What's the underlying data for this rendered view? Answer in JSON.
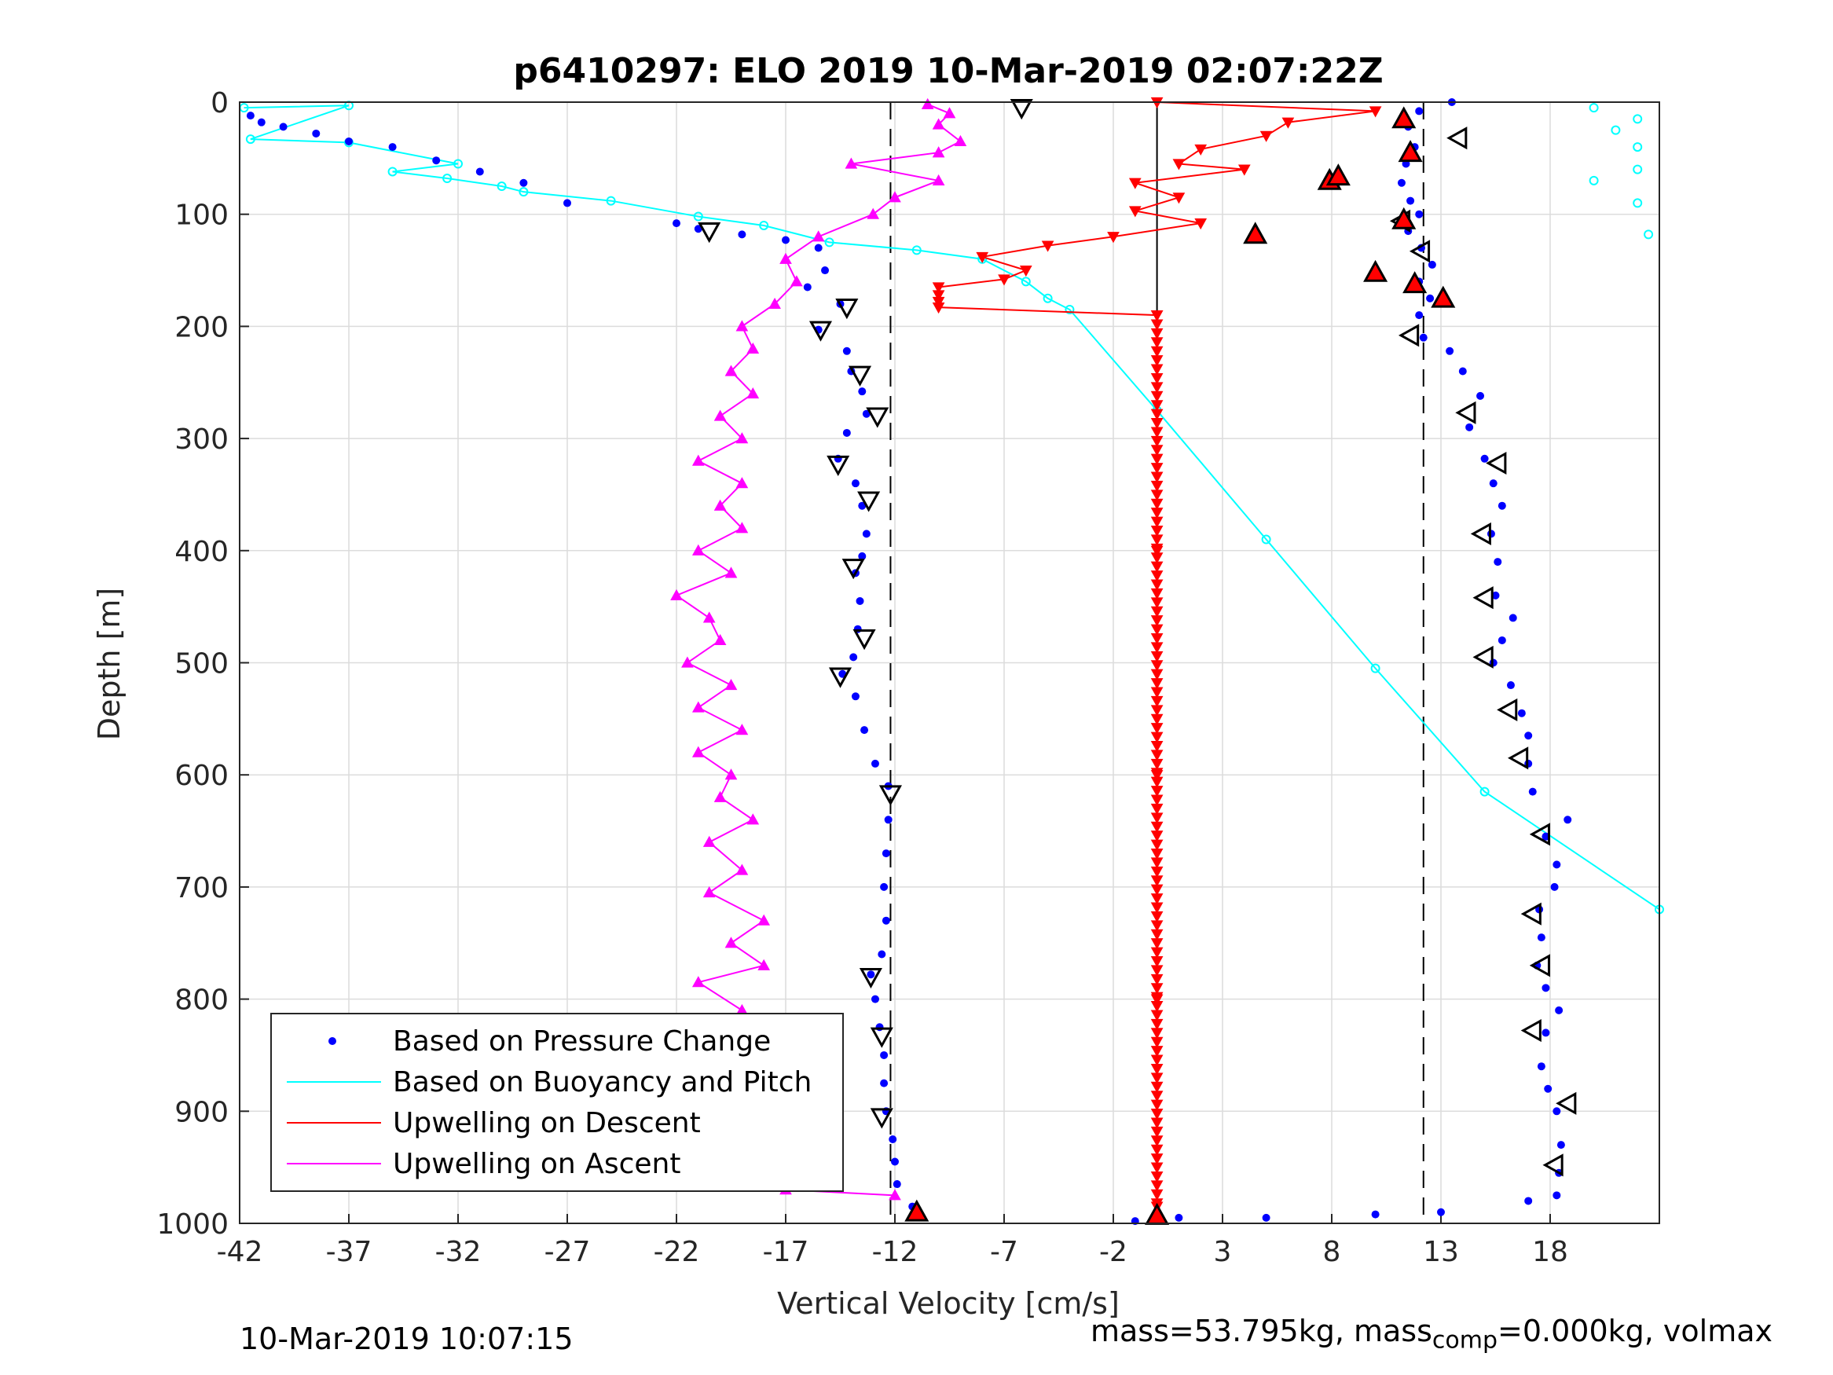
{
  "chart_data": {
    "type": "scatter",
    "title": "p6410297: ELO 2019 10-Mar-2019 02:07:22Z",
    "xlabel": "Vertical Velocity [cm/s]",
    "ylabel": "Depth [m]",
    "xlim": [
      -42,
      23
    ],
    "ylim": [
      0,
      1000
    ],
    "y_reversed": true,
    "grid": true,
    "xticks": [
      -42,
      -37,
      -32,
      -27,
      -22,
      -17,
      -12,
      -7,
      -2,
      3,
      8,
      13,
      18
    ],
    "yticks": [
      0,
      100,
      200,
      300,
      400,
      500,
      600,
      700,
      800,
      900,
      1000
    ],
    "reference_lines": {
      "solid_x": [
        0
      ],
      "dashed_x": [
        -12.2,
        12.2
      ]
    },
    "legend_position": "bottom-left",
    "series": [
      {
        "name": "Based on Pressure Change",
        "color": "#0000ff",
        "marker": "dot",
        "descent": [
          [
            -41.5,
            12
          ],
          [
            -41,
            18
          ],
          [
            -40,
            22
          ],
          [
            -38.5,
            28
          ],
          [
            -37,
            35
          ],
          [
            -35,
            40
          ],
          [
            -33,
            52
          ],
          [
            -31,
            62
          ],
          [
            -29,
            72
          ],
          [
            -27,
            90
          ],
          [
            -22,
            108
          ],
          [
            -21,
            113
          ],
          [
            -19,
            118
          ],
          [
            -17,
            123
          ],
          [
            -15.5,
            130
          ],
          [
            -15.2,
            150
          ],
          [
            -16,
            165
          ],
          [
            -14.5,
            180
          ],
          [
            -15.5,
            203
          ],
          [
            -14.2,
            222
          ],
          [
            -14,
            240
          ],
          [
            -13.5,
            258
          ],
          [
            -13.3,
            278
          ],
          [
            -14.2,
            295
          ],
          [
            -14.6,
            318
          ],
          [
            -13.8,
            340
          ],
          [
            -13.5,
            360
          ],
          [
            -13.3,
            385
          ],
          [
            -13.5,
            405
          ],
          [
            -13.8,
            420
          ],
          [
            -13.6,
            445
          ],
          [
            -13.7,
            470
          ],
          [
            -13.9,
            495
          ],
          [
            -14.4,
            510
          ],
          [
            -13.8,
            530
          ],
          [
            -13.4,
            560
          ],
          [
            -12.9,
            590
          ],
          [
            -12.3,
            610
          ],
          [
            -12.3,
            640
          ],
          [
            -12.4,
            670
          ],
          [
            -12.5,
            700
          ],
          [
            -12.4,
            730
          ],
          [
            -12.6,
            760
          ],
          [
            -13.1,
            778
          ],
          [
            -12.9,
            800
          ],
          [
            -12.7,
            825
          ],
          [
            -12.5,
            850
          ],
          [
            -12.5,
            875
          ],
          [
            -12.4,
            900
          ],
          [
            -12.1,
            925
          ],
          [
            -12.0,
            945
          ],
          [
            -11.9,
            965
          ],
          [
            -11.2,
            985
          ]
        ],
        "ascent": [
          [
            -1,
            998
          ],
          [
            1,
            995
          ],
          [
            5,
            995
          ],
          [
            10,
            992
          ],
          [
            13,
            990
          ],
          [
            17,
            980
          ],
          [
            18.3,
            975
          ],
          [
            18.4,
            955
          ],
          [
            18.5,
            930
          ],
          [
            18.3,
            900
          ],
          [
            17.9,
            880
          ],
          [
            17.6,
            860
          ],
          [
            17.8,
            830
          ],
          [
            18.4,
            810
          ],
          [
            17.8,
            790
          ],
          [
            17.4,
            770
          ],
          [
            17.6,
            745
          ],
          [
            17.5,
            720
          ],
          [
            18.2,
            700
          ],
          [
            18.3,
            680
          ],
          [
            17.8,
            655
          ],
          [
            18.8,
            640
          ],
          [
            17.2,
            615
          ],
          [
            17.0,
            590
          ],
          [
            17.0,
            565
          ],
          [
            16.7,
            545
          ],
          [
            16.2,
            520
          ],
          [
            15.4,
            500
          ],
          [
            15.8,
            480
          ],
          [
            16.3,
            460
          ],
          [
            15.5,
            440
          ],
          [
            15.6,
            410
          ],
          [
            15.3,
            385
          ],
          [
            15.8,
            360
          ],
          [
            15.4,
            340
          ],
          [
            15.0,
            318
          ],
          [
            14.3,
            290
          ],
          [
            14.8,
            262
          ],
          [
            14.0,
            240
          ],
          [
            13.4,
            222
          ],
          [
            12.2,
            210
          ],
          [
            12.0,
            190
          ],
          [
            12.5,
            175
          ],
          [
            12.0,
            160
          ],
          [
            12.6,
            145
          ],
          [
            12.1,
            130
          ],
          [
            11.5,
            115
          ],
          [
            12.0,
            100
          ],
          [
            11.6,
            88
          ],
          [
            11.2,
            72
          ],
          [
            11.4,
            55
          ],
          [
            11.8,
            40
          ],
          [
            11.5,
            22
          ],
          [
            12.0,
            8
          ],
          [
            13.5,
            0
          ]
        ]
      },
      {
        "name": "Based on Buoyancy and Pitch",
        "color": "#00ffff",
        "marker": "circle-line",
        "points": [
          [
            -41.8,
            5
          ],
          [
            -37,
            3
          ],
          [
            -41.5,
            33
          ],
          [
            -37,
            36
          ],
          [
            -32,
            55
          ],
          [
            -35,
            62
          ],
          [
            -32.5,
            68
          ],
          [
            -30,
            75
          ],
          [
            -29,
            80
          ],
          [
            -25,
            88
          ],
          [
            -21,
            102
          ],
          [
            -18,
            110
          ],
          [
            -15,
            125
          ],
          [
            -11,
            132
          ],
          [
            -8,
            140
          ],
          [
            -6,
            160
          ],
          [
            -5,
            175
          ],
          [
            -4,
            185
          ],
          [
            0,
            275
          ],
          [
            5,
            390
          ],
          [
            10,
            505
          ],
          [
            15,
            615
          ],
          [
            23,
            720
          ],
          [
            20,
            5
          ],
          [
            22,
            15
          ],
          [
            21,
            25
          ],
          [
            22,
            40
          ],
          [
            22,
            60
          ],
          [
            20,
            70
          ],
          [
            22,
            90
          ],
          [
            22.5,
            118
          ]
        ]
      },
      {
        "name": "Upwelling on Descent",
        "color": "#ff0000",
        "marker": "triangle-down",
        "points": [
          [
            0,
            0
          ],
          [
            10,
            8
          ],
          [
            6,
            18
          ],
          [
            5,
            30
          ],
          [
            2,
            42
          ],
          [
            1,
            55
          ],
          [
            4,
            60
          ],
          [
            -1,
            72
          ],
          [
            1,
            85
          ],
          [
            -1,
            97
          ],
          [
            2,
            108
          ],
          [
            -2,
            120
          ],
          [
            -5,
            128
          ],
          [
            -8,
            138
          ],
          [
            -6,
            150
          ],
          [
            -7,
            158
          ],
          [
            -10,
            165
          ],
          [
            -10,
            172
          ],
          [
            -10,
            178
          ],
          [
            -10,
            183
          ],
          [
            0,
            190
          ],
          [
            0,
            400
          ],
          [
            0,
            600
          ],
          [
            0,
            800
          ],
          [
            0,
            985
          ]
        ]
      },
      {
        "name": "Upwelling on Ascent",
        "color": "#ff00ff",
        "marker": "triangle-up",
        "points": [
          [
            -12,
            975
          ],
          [
            -17,
            970
          ],
          [
            -18.5,
            955
          ],
          [
            -20.5,
            945
          ],
          [
            -17,
            935
          ],
          [
            -19,
            915
          ],
          [
            -17.5,
            895
          ],
          [
            -20,
            875
          ],
          [
            -19,
            855
          ],
          [
            -20.5,
            835
          ],
          [
            -19,
            810
          ],
          [
            -21,
            785
          ],
          [
            -18,
            770
          ],
          [
            -19.5,
            750
          ],
          [
            -18,
            730
          ],
          [
            -20.5,
            705
          ],
          [
            -19,
            685
          ],
          [
            -20.5,
            660
          ],
          [
            -18.5,
            640
          ],
          [
            -20,
            620
          ],
          [
            -19.5,
            600
          ],
          [
            -21,
            580
          ],
          [
            -19,
            560
          ],
          [
            -21,
            540
          ],
          [
            -19.5,
            520
          ],
          [
            -21.5,
            500
          ],
          [
            -20,
            480
          ],
          [
            -20.5,
            460
          ],
          [
            -22,
            440
          ],
          [
            -19.5,
            420
          ],
          [
            -21,
            400
          ],
          [
            -19,
            380
          ],
          [
            -20,
            360
          ],
          [
            -19,
            340
          ],
          [
            -21,
            320
          ],
          [
            -19,
            300
          ],
          [
            -20,
            280
          ],
          [
            -18.5,
            260
          ],
          [
            -19.5,
            240
          ],
          [
            -18.5,
            220
          ],
          [
            -19,
            200
          ],
          [
            -17.5,
            180
          ],
          [
            -16.5,
            160
          ],
          [
            -17,
            140
          ],
          [
            -15.5,
            120
          ],
          [
            -13,
            100
          ],
          [
            -12,
            85
          ],
          [
            -10,
            70
          ],
          [
            -14,
            55
          ],
          [
            -10,
            45
          ],
          [
            -9,
            35
          ],
          [
            -10,
            20
          ],
          [
            -9.5,
            10
          ],
          [
            -10.5,
            2
          ]
        ]
      }
    ],
    "markers": {
      "open_triangles_descent": [
        [
          -6.2,
          5
        ],
        [
          -20.5,
          115
        ],
        [
          -14.2,
          183
        ],
        [
          -15.4,
          203
        ],
        [
          -13.6,
          243
        ],
        [
          -12.8,
          280
        ],
        [
          -14.6,
          323
        ],
        [
          -13.2,
          355
        ],
        [
          -13.9,
          415
        ],
        [
          -13.4,
          478
        ],
        [
          -14.5,
          512
        ],
        [
          -12.2,
          617
        ],
        [
          -13.1,
          780
        ],
        [
          -12.6,
          833
        ],
        [
          -12.6,
          905
        ]
      ],
      "open_triangles_ascent": [
        [
          13.8,
          32
        ],
        [
          14.2,
          277
        ],
        [
          15.6,
          322
        ],
        [
          14.9,
          385
        ],
        [
          15.0,
          442
        ],
        [
          15.0,
          495
        ],
        [
          16.1,
          542
        ],
        [
          16.6,
          585
        ],
        [
          17.6,
          653
        ],
        [
          17.2,
          724
        ],
        [
          17.6,
          770
        ],
        [
          17.2,
          828
        ],
        [
          18.8,
          893
        ],
        [
          18.2,
          948
        ],
        [
          11.6,
          208
        ],
        [
          12.1,
          133
        ],
        [
          11.2,
          106
        ]
      ],
      "red_triangles": [
        [
          11.3,
          15
        ],
        [
          11.6,
          45
        ],
        [
          7.9,
          70
        ],
        [
          8.3,
          66
        ],
        [
          11.3,
          105
        ],
        [
          4.5,
          118
        ],
        [
          10.0,
          152
        ],
        [
          11.8,
          162
        ],
        [
          13.1,
          175
        ],
        [
          -11.0,
          990
        ],
        [
          0,
          993
        ]
      ]
    }
  },
  "footer": {
    "timestamp": "10-Mar-2019 10:07:15",
    "mass_prefix": "mass=53.795kg, mass",
    "mass_sub": "comp",
    "mass_suffix": "=0.000kg, volmax"
  }
}
